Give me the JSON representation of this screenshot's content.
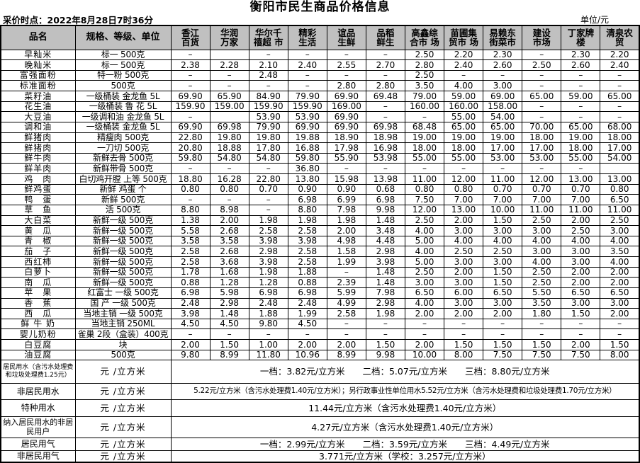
{
  "title": "衡阳市民生商品价格信息",
  "info": {
    "collect_time": "采价时点：2022年8月28日7时36分",
    "unit": "单位/元"
  },
  "colors": {
    "header_bg": "#c0c0c0",
    "border": "#000000"
  },
  "table": {
    "corner_headers": [
      "品名",
      "规格、等级、单位"
    ],
    "store_headers": [
      "香江\n百货",
      "华润\n万家",
      "华尔千\n禧超 市",
      "精彩\n生活",
      "谊品\n生鲜",
      "品稻\n鲜生",
      "高鑫综\n合市 场",
      "苗圃集\n贸市 场",
      "易赖东\n街菜市",
      "建设\n市场",
      "丁家牌\n楼",
      "清泉农\n贸"
    ],
    "rows": [
      {
        "name": "早籼米",
        "spec": "标一 500克",
        "prices": [
          "–",
          "",
          "–",
          "–",
          "–",
          "–",
          "2.50",
          "2.20",
          "2.30",
          "–",
          "2.30",
          "2.20"
        ]
      },
      {
        "name": "晚籼米",
        "spec": "标一 500克",
        "prices": [
          "2.38",
          "2.28",
          "2.10",
          "2.40",
          "2.55",
          "2.70",
          "2.80",
          "2.40",
          "2.60",
          "2.50",
          "2.60",
          "2.40"
        ]
      },
      {
        "name": "富强面粉",
        "spec": "特一粉 500克",
        "prices": [
          "–",
          "–",
          "2.48",
          "–",
          "–",
          "–",
          "2.50",
          "–",
          "–",
          "–",
          "–",
          "–"
        ]
      },
      {
        "name": "标准面粉",
        "spec": "500克",
        "prices": [
          "–",
          "–",
          "–",
          "–",
          "2.80",
          "2.80",
          "3.50",
          "4.00",
          "3.00",
          "–",
          "–",
          "–"
        ]
      },
      {
        "name": "菜籽油",
        "spec": "一级桶装 金龙鱼 5L",
        "prices": [
          "69.90",
          "65.90",
          "84.90",
          "79.90",
          "69.90",
          "69.48",
          "79.00",
          "59.00",
          "69.00",
          "65.00",
          "59.00",
          "65.00"
        ]
      },
      {
        "name": "花生油",
        "spec": "一级桶装 鲁 花 5L",
        "prices": [
          "159.90",
          "159.00",
          "159.90",
          "159.90",
          "169.00",
          "–",
          "160.00",
          "160.00",
          "158.00",
          "–",
          "–",
          "–"
        ]
      },
      {
        "name": "大豆油",
        "spec": "一级调和油 金龙鱼 5L",
        "prices": [
          "–",
          "",
          "53.90",
          "53.90",
          "69.90",
          "–",
          "–",
          "55.00",
          "54.00",
          "–",
          "–",
          "–"
        ]
      },
      {
        "name": "调和油",
        "spec": "一级桶装 金龙鱼 5L",
        "prices": [
          "69.90",
          "69.98",
          "79.90",
          "69.90",
          "69.90",
          "69.98",
          "68.48",
          "65.00",
          "65.00",
          "70.00",
          "65.00",
          "68.00"
        ]
      },
      {
        "name": "鲜猪肉",
        "spec": "精瘦肉 500克",
        "prices": [
          "22.80",
          "19.80",
          "19.80",
          "19.88",
          "18.90",
          "18.98",
          "19.00",
          "19.00",
          "19.00",
          "18.00",
          "19.00",
          "18.00"
        ]
      },
      {
        "name": "鲜猪肉",
        "spec": "一刀切 500克",
        "prices": [
          "20.80",
          "18.88",
          "17.80",
          "16.88",
          "17.98",
          "16.98",
          "18.00",
          "18.00",
          "17.00",
          "17.00",
          "18.00",
          "17.00"
        ]
      },
      {
        "name": "鲜牛肉",
        "spec": "新鲜去骨 500克",
        "prices": [
          "59.80",
          "54.80",
          "54.80",
          "59.80",
          "55.90",
          "53.98",
          "55.00",
          "55.00",
          "53.00",
          "53.00",
          "55.00",
          "54.00"
        ]
      },
      {
        "name": "鲜羊肉",
        "spec": "新鲜带骨 500克",
        "prices": [
          "–",
          "–",
          "–",
          "36.80",
          "–",
          "–",
          "–",
          "–",
          "–",
          "–",
          "–",
          ""
        ]
      },
      {
        "name": "鸡　肉",
        "spec": "白切鸡开膛 上等 500克",
        "prices": [
          "18.80",
          "16.28",
          "22.80",
          "13.80",
          "15.98",
          "13.98",
          "11.00",
          "12.00",
          "11.00",
          "12.00",
          "13.00",
          "13.00"
        ]
      },
      {
        "name": "鲜鸡蛋",
        "spec": "新鲜 鸡蛋 个",
        "prices": [
          "0.80",
          "0.80",
          "0.70",
          "0.90",
          "0.90",
          "0.68",
          "0.80",
          "0.80",
          "0.70",
          "0.70",
          "0.70",
          "0.80"
        ]
      },
      {
        "name": "鸭　蛋",
        "spec": "新鲜 500克",
        "prices": [
          "–",
          "–",
          "–",
          "6.98",
          "6.99",
          "6.98",
          "7.50",
          "7.00",
          "7.00",
          "7.00",
          "7.00",
          "6.50"
        ]
      },
      {
        "name": "草　鱼",
        "spec": "活 500克",
        "prices": [
          "8.80",
          "8.98",
          "–",
          "8.80",
          "7.98",
          "9.98",
          "12.00",
          "13.00",
          "10.00",
          "11.00",
          "11.00",
          "11.00"
        ]
      },
      {
        "name": "大白菜",
        "spec": "新鲜一级 500克",
        "prices": [
          "1.38",
          "2.00",
          "1.98",
          "1.98",
          "1.98",
          "1.48",
          "2.50",
          "2.00",
          "1.50",
          "2.50",
          "2.00",
          "2.50"
        ]
      },
      {
        "name": "黄　瓜",
        "spec": "新鲜一级 500克",
        "prices": [
          "5.58",
          "2.68",
          "2.58",
          "2.58",
          "2.00",
          "3.48",
          "4.00",
          "3.00",
          "3.00",
          "3.00",
          "2.50",
          "3.00"
        ]
      },
      {
        "name": "青　椒",
        "spec": "新鲜一级 500克",
        "prices": [
          "3.58",
          "3.58",
          "3.98",
          "3.98",
          "4.98",
          "4.48",
          "5.00",
          "4.00",
          "4.00",
          "4.00",
          "4.00",
          "4.00"
        ]
      },
      {
        "name": "茄　子",
        "spec": "新鲜一级 500克",
        "prices": [
          "2.58",
          "2.68",
          "2.98",
          "2.58",
          "1.58",
          "2.98",
          "4.00",
          "2.50",
          "2.50",
          "3.00",
          "3.00",
          "3.50"
        ]
      },
      {
        "name": "西红柿",
        "spec": "新鲜一级 500克",
        "prices": [
          "2.58",
          "3.68",
          "3.98",
          "2.58",
          "1.99",
          "3.98",
          "5.00",
          "3.00",
          "3.00",
          "4.00",
          "3.00",
          "4.00"
        ]
      },
      {
        "name": "白萝卜",
        "spec": "新鲜一级 500克",
        "prices": [
          "1.78",
          "1.68",
          "1.98",
          "1.88",
          "–",
          "1.48",
          "2.50",
          "2.00",
          "1.50",
          "2.50",
          "2.00",
          "2.00"
        ]
      },
      {
        "name": "南　瓜",
        "spec": "新鲜一级 500克",
        "prices": [
          "0.88",
          "1.28",
          "1.28",
          "0.88",
          "2.39",
          "1.48",
          "3.00",
          "3.00",
          "1.50",
          "2.50",
          "2.00",
          "2.00"
        ]
      },
      {
        "name": "苹　果",
        "spec": "红富士 一级 500克",
        "prices": [
          "6.98",
          "5.98",
          "6.98",
          "6.98",
          "5.99",
          "7.98",
          "6.50",
          "6.00",
          "6.50",
          "5.50",
          "6.50",
          "6.50"
        ]
      },
      {
        "name": "香　蕉",
        "spec": "国 产 一级 500克",
        "prices": [
          "2.48",
          "2.98",
          "2.48",
          "2.48",
          "4.99",
          "2.98",
          "4.00",
          "3.00",
          "3.00",
          "3.50",
          "3.00",
          "3.00"
        ]
      },
      {
        "name": "西　瓜",
        "spec": "当地主销 一级 500克",
        "prices": [
          "3.98",
          "1.48",
          "1.88",
          "1.99",
          "2.58",
          "1.98",
          "2.00",
          "2.00",
          "2.00",
          "1.80",
          "1.50",
          "2.00"
        ]
      },
      {
        "name": "鲜 牛 奶",
        "spec": "当地主销 250ML",
        "prices": [
          "4.50",
          "4.50",
          "9.80",
          "4.50",
          "–",
          "–",
          "–",
          "–",
          "–",
          "–",
          "–",
          "–"
        ]
      },
      {
        "name": "婴儿奶粉",
        "spec": "雀巢 2段（盒装）400克",
        "prices": [
          "–",
          "–",
          "–",
          "–",
          "–",
          "–",
          "–",
          "–",
          "–",
          "–",
          "–",
          "–"
        ]
      },
      {
        "name": "白豆腐",
        "spec": "块",
        "prices": [
          "2.00",
          "1.50",
          "1.00",
          "2.00",
          "2.00",
          "1.50",
          "2.00",
          "1.50",
          "1.50",
          "1.50",
          "2.00",
          "1.50"
        ]
      },
      {
        "name": "油豆腐",
        "spec": "500克",
        "prices": [
          "9.80",
          "8.99",
          "11.80",
          "10.96",
          "8.99",
          "9.98",
          "10.00",
          "8.00",
          "7.50",
          "7.50",
          "7.50",
          "8.00"
        ]
      }
    ],
    "utility_rows": [
      {
        "label": "居民用水（含污水处理费和垃圾处理费1.25元）",
        "unit": "元 /立方米",
        "value": "一档：3.82元/立方米　　二档：5.07元/立方米　　三档：8.80元/立方米"
      },
      {
        "label": "非居民用水",
        "unit": "元 /立方米",
        "value": "5.22元/立方米（含污水处理费1.40元/立方米）；另行政事业性单位用水5.52元/立方米（含污水处理费和垃圾处理费1.70元/立方米）"
      },
      {
        "label": "特种用水",
        "unit": "元 /立方米",
        "value": "11.44元/立方米（含污水处理费1.40元/立方米）"
      },
      {
        "label": "纳入居民用水的非居民用户",
        "unit": "元 /立方米",
        "value": "4.27元/立方米（含污水处理费1.40元/立方米）"
      },
      {
        "label": "居民用气",
        "unit": "元 /立方米",
        "value": "一档：2.99元/立方米　　二档：3.59元/立方米　　三档：4.49元/立方米"
      },
      {
        "label": "非居民用气",
        "unit": "元 /立方米",
        "value": "3.771元/立方米（学校：3.257元/立方米）"
      }
    ]
  }
}
